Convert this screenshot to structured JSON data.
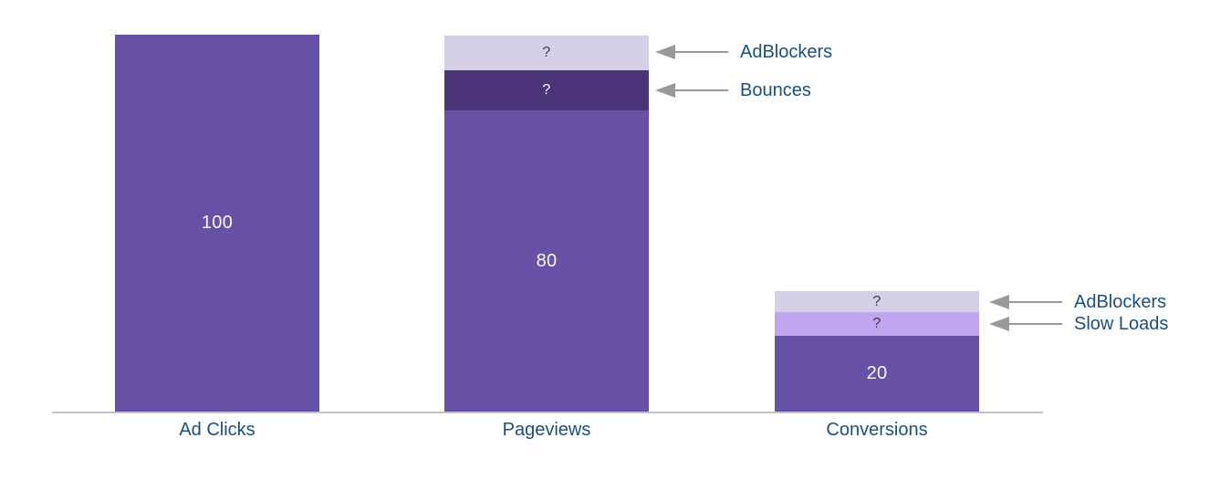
{
  "chart_data": {
    "type": "bar",
    "subtype": "stacked-funnel",
    "title": "",
    "xlabel": "",
    "ylabel": "",
    "ylim": [
      0,
      100
    ],
    "grid": false,
    "legend": false,
    "axis_color": "#c1c1c1",
    "category_label_color": "#1b4f7e",
    "annotation_arrow_color": "#999999",
    "categories": [
      "Ad Clicks",
      "Pageviews",
      "Conversions"
    ],
    "bars": [
      {
        "category": "Ad Clicks",
        "total": 100,
        "segments": [
          {
            "name": "Ad Clicks",
            "value": 100,
            "display": "100",
            "color": "#6751a5",
            "text_color": "#f7f5fb"
          }
        ]
      },
      {
        "category": "Pageviews",
        "total": 100,
        "segments": [
          {
            "name": "AdBlockers",
            "value": "?",
            "estimated_value": 9.2,
            "display": "?",
            "color": "#d5d0e6",
            "text_color": "#3c3c3c"
          },
          {
            "name": "Bounces",
            "value": "?",
            "estimated_value": 10.7,
            "display": "?",
            "color": "#4b3478",
            "text_color": "#ffffff"
          },
          {
            "name": "Pageviews",
            "value": 80,
            "display": "80",
            "color": "#6751a5",
            "text_color": "#f7f5fb"
          }
        ]
      },
      {
        "category": "Conversions",
        "total": 32,
        "segments": [
          {
            "name": "AdBlockers",
            "value": "?",
            "estimated_value": 5.6,
            "display": "?",
            "color": "#d5d0e6",
            "text_color": "#3c3c3c"
          },
          {
            "name": "Slow Loads",
            "value": "?",
            "estimated_value": 6.3,
            "display": "?",
            "color": "#bfa6ee",
            "text_color": "#3c3c3c"
          },
          {
            "name": "Conversions",
            "value": 20,
            "display": "20",
            "color": "#6751a5",
            "text_color": "#f7f5fb"
          }
        ]
      }
    ],
    "annotations": [
      {
        "bar": 1,
        "segment": 0,
        "label": "AdBlockers"
      },
      {
        "bar": 1,
        "segment": 1,
        "label": "Bounces"
      },
      {
        "bar": 2,
        "segment": 0,
        "label": "AdBlockers"
      },
      {
        "bar": 2,
        "segment": 1,
        "label": "Slow Loads"
      }
    ]
  }
}
